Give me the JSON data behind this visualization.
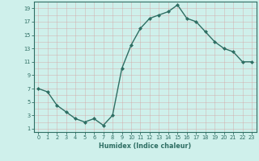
{
  "x": [
    0,
    1,
    2,
    3,
    4,
    5,
    6,
    7,
    8,
    9,
    10,
    11,
    12,
    13,
    14,
    15,
    16,
    17,
    18,
    19,
    20,
    21,
    22,
    23
  ],
  "y": [
    7,
    6.5,
    4.5,
    3.5,
    2.5,
    2,
    2.5,
    1.5,
    3,
    10,
    13.5,
    16,
    17.5,
    18,
    18.5,
    19.5,
    17.5,
    17,
    15.5,
    14,
    13,
    12.5,
    11,
    11
  ],
  "xlabel": "Humidex (Indice chaleur)",
  "ytick_labels": [
    "1",
    "3",
    "5",
    "7",
    "9",
    "11",
    "13",
    "15",
    "17",
    "19"
  ],
  "ytick_values": [
    1,
    3,
    5,
    7,
    9,
    11,
    13,
    15,
    17,
    19
  ],
  "xtick_values": [
    0,
    1,
    2,
    3,
    4,
    5,
    6,
    7,
    8,
    9,
    10,
    11,
    12,
    13,
    14,
    15,
    16,
    17,
    18,
    19,
    20,
    21,
    22,
    23
  ],
  "line_color": "#2e6e63",
  "marker_color": "#2e6e63",
  "bg_color": "#cff0eb",
  "grid_major_color": "#c0d8d4",
  "grid_minor_color": "#d8ecea",
  "xlim": [
    -0.5,
    23.5
  ],
  "ylim": [
    0.5,
    20
  ]
}
